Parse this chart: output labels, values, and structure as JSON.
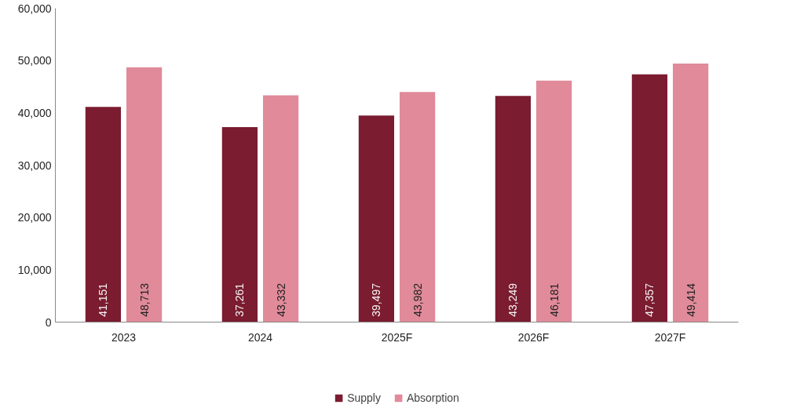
{
  "chart_data": {
    "type": "bar",
    "categories": [
      "2023",
      "2024",
      "2025F",
      "2026F",
      "2027F"
    ],
    "series": [
      {
        "name": "Supply",
        "color": "#7b1c30",
        "values": [
          41151,
          37261,
          39497,
          43249,
          47357
        ],
        "value_labels": [
          "41,151",
          "37,261",
          "39,497",
          "43,249",
          "47,357"
        ]
      },
      {
        "name": "Absorption",
        "color": "#e08a9a",
        "values": [
          48713,
          43332,
          43982,
          46181,
          49414
        ],
        "value_labels": [
          "48,713",
          "43,332",
          "43,982",
          "46,181",
          "49,414"
        ]
      }
    ],
    "ylim": [
      0,
      60000
    ],
    "yticks": [
      {
        "value": 0,
        "label": "0"
      },
      {
        "value": 10000,
        "label": "10,000"
      },
      {
        "value": 20000,
        "label": "20,000"
      },
      {
        "value": 30000,
        "label": "30,000"
      },
      {
        "value": 40000,
        "label": "40,000"
      },
      {
        "value": 50000,
        "label": "50,000"
      },
      {
        "value": 60000,
        "label": "60,000"
      }
    ],
    "grid": false,
    "legend": "bottom"
  }
}
